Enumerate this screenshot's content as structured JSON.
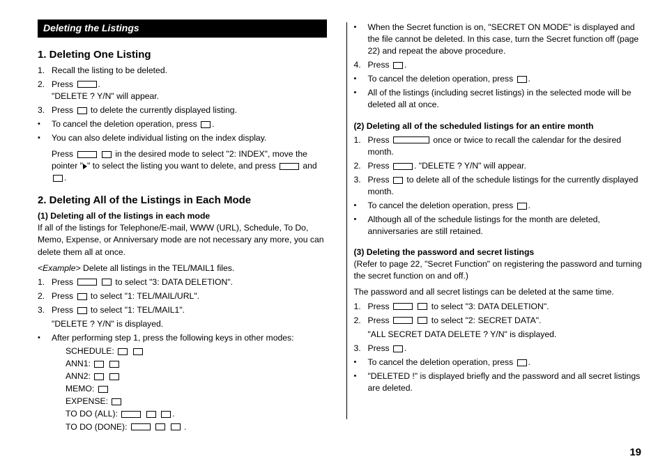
{
  "page_number": "19",
  "section_bar": "Deleting the Listings",
  "left": {
    "h1": "1. Deleting One Listing",
    "h1_steps": [
      {
        "num": "1.",
        "text": "Recall the listing to be deleted."
      },
      {
        "num": "2.",
        "pre": "Press ",
        "post": ".",
        "sub": "\"DELETE ? Y/N\" will appear."
      },
      {
        "num": "3.",
        "pre": "Press ",
        "post": " to delete the currently displayed listing."
      }
    ],
    "h1_bullets": [
      {
        "pre": "To cancel the deletion operation, press ",
        "post": "."
      },
      {
        "text": "You can also delete individual listing on the index display."
      }
    ],
    "index_press_pre": "Press ",
    "index_press_mid1": " ",
    "index_press_mid2": " in the desired mode to select \"2: INDEX\", move the pointer \"",
    "index_press_mid3": "\" to select the listing you want to delete, and press ",
    "index_press_mid4": " and ",
    "index_press_end": ".",
    "h2": "2. Deleting All of the Listings in Each Mode",
    "mode1_title": "(1)  Deleting all of the listings in each mode",
    "mode1_intro": "If all of the listings for Telephone/E-mail, WWW (URL), Schedule, To Do, Memo, Expense, or Anniversary mode are not necessary any more, you can delete them all at once.",
    "example_label": "<Example>",
    "example_text": " Delete all listings in the TEL/MAIL1 files.",
    "mode1_steps": [
      {
        "num": "1.",
        "pre": "Press ",
        "mid": " ",
        "post": " to select \"3: DATA DELETION\"."
      },
      {
        "num": "2.",
        "pre": "Press ",
        "post": " to select \"1: TEL/MAIL/URL\"."
      },
      {
        "num": "3.",
        "pre": "Press ",
        "post": " to select \"1: TEL/MAIL1\"."
      }
    ],
    "mode1_confirm": "\"DELETE ? Y/N\" is displayed.",
    "mode1_after_step1": "After performing step 1, press the following keys in other modes:",
    "modes": {
      "schedule": "SCHEDULE:",
      "ann1": "ANN1:",
      "ann2": "ANN2:",
      "memo": "MEMO:",
      "expense": "EXPENSE:",
      "todo_all": "TO DO (ALL):",
      "todo_done": "TO DO (DONE):"
    }
  },
  "right": {
    "secret_bullet": "When the Secret function is on, \"SECRET ON MODE\" is displayed and the file cannot be deleted. In this case, turn the Secret function off (page 22) and repeat the above procedure.",
    "step4_pre": "Press ",
    "step4_post": ".",
    "cancel_pre": "To cancel the deletion operation, press ",
    "cancel_post": ".",
    "all_listings": "All of the listings (including secret listings) in the selected mode will be deleted all at once.",
    "mode2_title": "(2) Deleting all of the scheduled listings for an entire month",
    "mode2_steps": [
      {
        "num": "1.",
        "pre": "Press ",
        "post": " once or twice to recall the calendar for the desired month."
      },
      {
        "num": "2.",
        "pre": "Press ",
        "post": ". \"DELETE ? Y/N\" will appear."
      },
      {
        "num": "3.",
        "pre": "Press ",
        "post": " to delete all of the schedule listings for the currently displayed month."
      }
    ],
    "mode2_cancel_pre": "To cancel the deletion operation, press ",
    "mode2_cancel_post": ".",
    "mode2_retain": "Although all of the schedule listings for the month are deleted, anniversaries are still retained.",
    "mode3_title": "(3) Deleting the password and secret listings",
    "mode3_intro": "(Refer to page 22, \"Secret Function\" on registering the password and turning the secret function on and off.)",
    "mode3_line": "The password and all secret listings can be deleted at the same time.",
    "mode3_steps": [
      {
        "num": "1.",
        "pre": "Press ",
        "mid": " ",
        "post": " to select \"3: DATA DELETION\"."
      },
      {
        "num": "2.",
        "pre": "Press ",
        "mid": " ",
        "post": " to select \"2: SECRET DATA\"."
      }
    ],
    "mode3_confirm": "\"ALL SECRET DATA DELETE ? Y/N\" is displayed.",
    "mode3_step3_pre": "Press ",
    "mode3_step3_post": ".",
    "mode3_cancel_pre": "To cancel the deletion operation, press ",
    "mode3_cancel_post": ".",
    "mode3_deleted": "\"DELETED !\" is displayed briefly and the password and all secret listings are deleted."
  }
}
